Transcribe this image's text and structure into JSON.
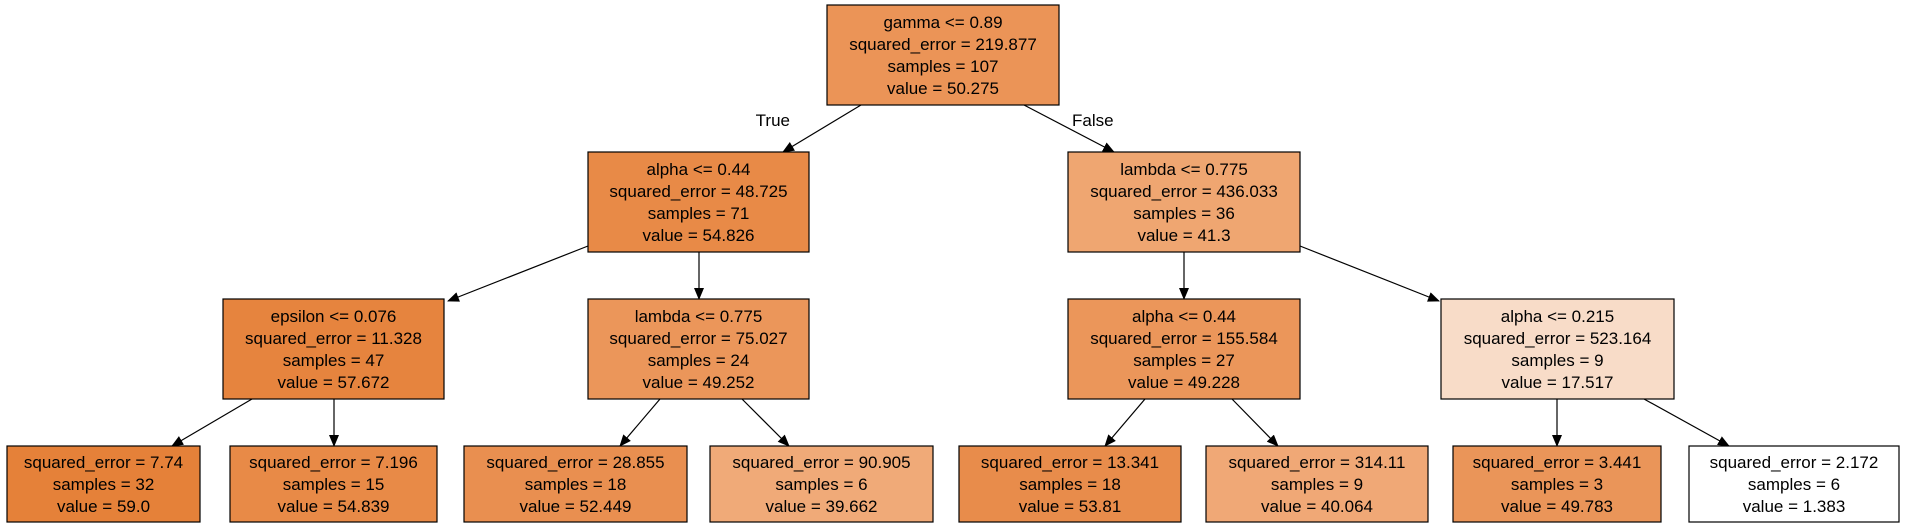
{
  "tree": {
    "nodes": [
      {
        "id": "n0",
        "lines": [
          "gamma <= 0.89",
          "squared_error = 219.877",
          "samples = 107",
          "value = 50.275"
        ],
        "fill": "#eb9457"
      },
      {
        "id": "n1",
        "lines": [
          "alpha <= 0.44",
          "squared_error = 48.725",
          "samples = 71",
          "value = 54.826"
        ],
        "fill": "#e88a47"
      },
      {
        "id": "n2",
        "lines": [
          "lambda <= 0.775",
          "squared_error = 436.033",
          "samples = 36",
          "value = 41.3"
        ],
        "fill": "#efa671"
      },
      {
        "id": "n3",
        "lines": [
          "epsilon <= 0.076",
          "squared_error = 11.328",
          "samples = 47",
          "value = 57.672"
        ],
        "fill": "#e6843e"
      },
      {
        "id": "n4",
        "lines": [
          "lambda <= 0.775",
          "squared_error = 75.027",
          "samples = 24",
          "value = 49.252"
        ],
        "fill": "#eb965a"
      },
      {
        "id": "n5",
        "lines": [
          "alpha <= 0.44",
          "squared_error = 155.584",
          "samples = 27",
          "value = 49.228"
        ],
        "fill": "#eb965a"
      },
      {
        "id": "n6",
        "lines": [
          "alpha <= 0.215",
          "squared_error = 523.164",
          "samples = 9",
          "value = 17.517"
        ],
        "fill": "#f8dcc8"
      },
      {
        "id": "n7",
        "lines": [
          "squared_error = 7.74",
          "samples = 32",
          "value = 59.0"
        ],
        "fill": "#e58139"
      },
      {
        "id": "n8",
        "lines": [
          "squared_error = 7.196",
          "samples = 15",
          "value = 54.839"
        ],
        "fill": "#e88a47"
      },
      {
        "id": "n9",
        "lines": [
          "squared_error = 28.855",
          "samples = 18",
          "value = 52.449"
        ],
        "fill": "#e98f50"
      },
      {
        "id": "n10",
        "lines": [
          "squared_error = 90.905",
          "samples = 6",
          "value = 39.662"
        ],
        "fill": "#f0aa78"
      },
      {
        "id": "n11",
        "lines": [
          "squared_error = 13.341",
          "samples = 18",
          "value = 53.81"
        ],
        "fill": "#e88c4b"
      },
      {
        "id": "n12",
        "lines": [
          "squared_error = 314.11",
          "samples = 9",
          "value = 40.064"
        ],
        "fill": "#f0a876"
      },
      {
        "id": "n13",
        "lines": [
          "squared_error = 3.441",
          "samples = 3",
          "value = 49.783"
        ],
        "fill": "#ea9559"
      },
      {
        "id": "n14",
        "lines": [
          "squared_error = 2.172",
          "samples = 6",
          "value = 1.383"
        ],
        "fill": "#ffffff"
      }
    ],
    "edges": [
      {
        "from": "n0",
        "to": "n1",
        "label": "True"
      },
      {
        "from": "n0",
        "to": "n2",
        "label": "False"
      },
      {
        "from": "n1",
        "to": "n3",
        "label": ""
      },
      {
        "from": "n1",
        "to": "n4",
        "label": ""
      },
      {
        "from": "n2",
        "to": "n5",
        "label": ""
      },
      {
        "from": "n2",
        "to": "n6",
        "label": ""
      },
      {
        "from": "n3",
        "to": "n7",
        "label": ""
      },
      {
        "from": "n3",
        "to": "n8",
        "label": ""
      },
      {
        "from": "n4",
        "to": "n9",
        "label": ""
      },
      {
        "from": "n4",
        "to": "n10",
        "label": ""
      },
      {
        "from": "n5",
        "to": "n11",
        "label": ""
      },
      {
        "from": "n5",
        "to": "n12",
        "label": ""
      },
      {
        "from": "n6",
        "to": "n13",
        "label": ""
      },
      {
        "from": "n6",
        "to": "n14",
        "label": ""
      }
    ]
  }
}
